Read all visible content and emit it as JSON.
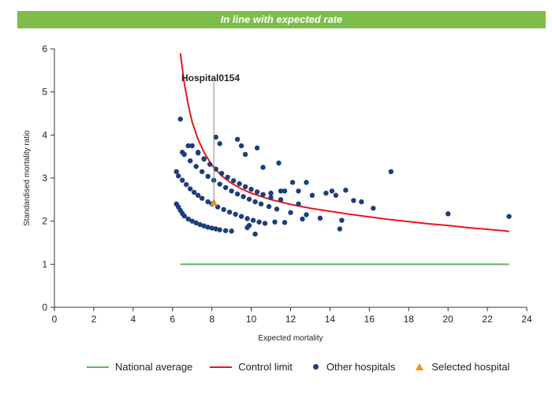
{
  "banner": {
    "text": "In line with expected rate",
    "color": "#7dbd4a"
  },
  "chart_data": {
    "type": "scatter",
    "xlabel": "Expected mortality",
    "ylabel": "Standardised mortality ratio",
    "xlim": [
      0,
      24
    ],
    "ylim": [
      0,
      6
    ],
    "xticks": [
      0,
      2,
      4,
      6,
      8,
      10,
      12,
      14,
      16,
      18,
      20,
      22,
      24
    ],
    "yticks": [
      0,
      1,
      2,
      3,
      4,
      5,
      6
    ],
    "grid": false,
    "legend_position": "bottom",
    "series": [
      {
        "name": "National average",
        "kind": "line",
        "color": "#5cb85c",
        "x": [
          6.4,
          23.1
        ],
        "y": [
          1.0,
          1.0
        ]
      },
      {
        "name": "Control limit",
        "kind": "line",
        "color": "#e8171b",
        "x": [
          6.4,
          6.6,
          6.8,
          7.0,
          7.3,
          7.6,
          8.0,
          8.5,
          9.0,
          9.5,
          10.0,
          11.0,
          12.0,
          13.0,
          14.0,
          15.0,
          16.0,
          17.0,
          18.0,
          19.0,
          20.0,
          21.0,
          22.0,
          23.0,
          23.1
        ],
        "y": [
          5.9,
          5.2,
          4.7,
          4.3,
          3.9,
          3.6,
          3.3,
          3.05,
          2.88,
          2.75,
          2.65,
          2.5,
          2.39,
          2.3,
          2.23,
          2.16,
          2.1,
          2.04,
          1.99,
          1.94,
          1.9,
          1.85,
          1.81,
          1.77,
          1.75
        ]
      },
      {
        "name": "Other hospitals",
        "kind": "scatter",
        "color": "#1f3d7a",
        "x": [
          6.2,
          6.3,
          6.4,
          6.5,
          6.6,
          6.8,
          7.0,
          7.2,
          7.4,
          7.6,
          7.8,
          8.0,
          8.2,
          8.4,
          8.7,
          9.0,
          6.2,
          6.3,
          6.5,
          6.7,
          6.9,
          7.1,
          7.3,
          7.5,
          7.8,
          8.0,
          8.3,
          8.6,
          8.9,
          9.2,
          9.5,
          9.8,
          10.1,
          10.4,
          10.7,
          6.6,
          6.9,
          7.2,
          7.5,
          7.8,
          8.1,
          8.4,
          8.7,
          9.0,
          9.3,
          9.6,
          9.9,
          10.2,
          10.5,
          10.9,
          11.3,
          7.0,
          7.3,
          7.6,
          7.9,
          8.2,
          8.5,
          8.8,
          9.1,
          9.4,
          9.7,
          10.0,
          10.3,
          10.6,
          11.0,
          11.5,
          6.4,
          6.5,
          6.8,
          7.3,
          7.6,
          8.2,
          8.4,
          9.3,
          9.5,
          9.7,
          10.3,
          10.6,
          11.4,
          11.5,
          11.0,
          11.7,
          12.1,
          12.4,
          12.8,
          13.1,
          13.8,
          14.1,
          14.3,
          14.8,
          15.2,
          15.6,
          16.2,
          17.1,
          20.0,
          23.1,
          14.6,
          14.5,
          12.0,
          12.6,
          12.4,
          11.7,
          10.2,
          9.8,
          9.9,
          11.2,
          12.8,
          13.5
        ],
        "y": [
          2.4,
          2.33,
          2.25,
          2.18,
          2.12,
          2.05,
          2.0,
          1.96,
          1.92,
          1.89,
          1.86,
          1.84,
          1.82,
          1.8,
          1.78,
          1.77,
          3.15,
          3.05,
          2.95,
          2.85,
          2.75,
          2.67,
          2.6,
          2.53,
          2.45,
          2.4,
          2.33,
          2.27,
          2.21,
          2.16,
          2.11,
          2.06,
          2.02,
          1.98,
          1.95,
          3.55,
          3.4,
          3.27,
          3.15,
          3.04,
          2.95,
          2.86,
          2.78,
          2.7,
          2.63,
          2.57,
          2.51,
          2.45,
          2.4,
          2.34,
          2.28,
          3.75,
          3.58,
          3.44,
          3.32,
          3.21,
          3.11,
          3.02,
          2.94,
          2.87,
          2.8,
          2.74,
          2.68,
          2.62,
          2.55,
          2.5,
          4.37,
          3.6,
          3.75,
          3.6,
          3.45,
          3.95,
          3.8,
          3.9,
          3.75,
          3.55,
          3.7,
          3.25,
          3.35,
          2.7,
          2.65,
          2.7,
          2.9,
          2.7,
          2.9,
          2.6,
          2.65,
          2.7,
          2.6,
          2.72,
          2.48,
          2.45,
          2.3,
          3.15,
          2.17,
          2.11,
          2.02,
          1.82,
          2.2,
          2.05,
          2.4,
          1.97,
          1.7,
          1.85,
          1.9,
          1.98,
          2.15,
          2.07
        ]
      },
      {
        "name": "Selected hospital",
        "kind": "scatter",
        "color": "#f29312",
        "x": [
          8.1
        ],
        "y": [
          2.43
        ]
      }
    ],
    "annotations": [
      {
        "text": "Hospital0154",
        "x": 8.1,
        "y": 2.43
      }
    ]
  }
}
